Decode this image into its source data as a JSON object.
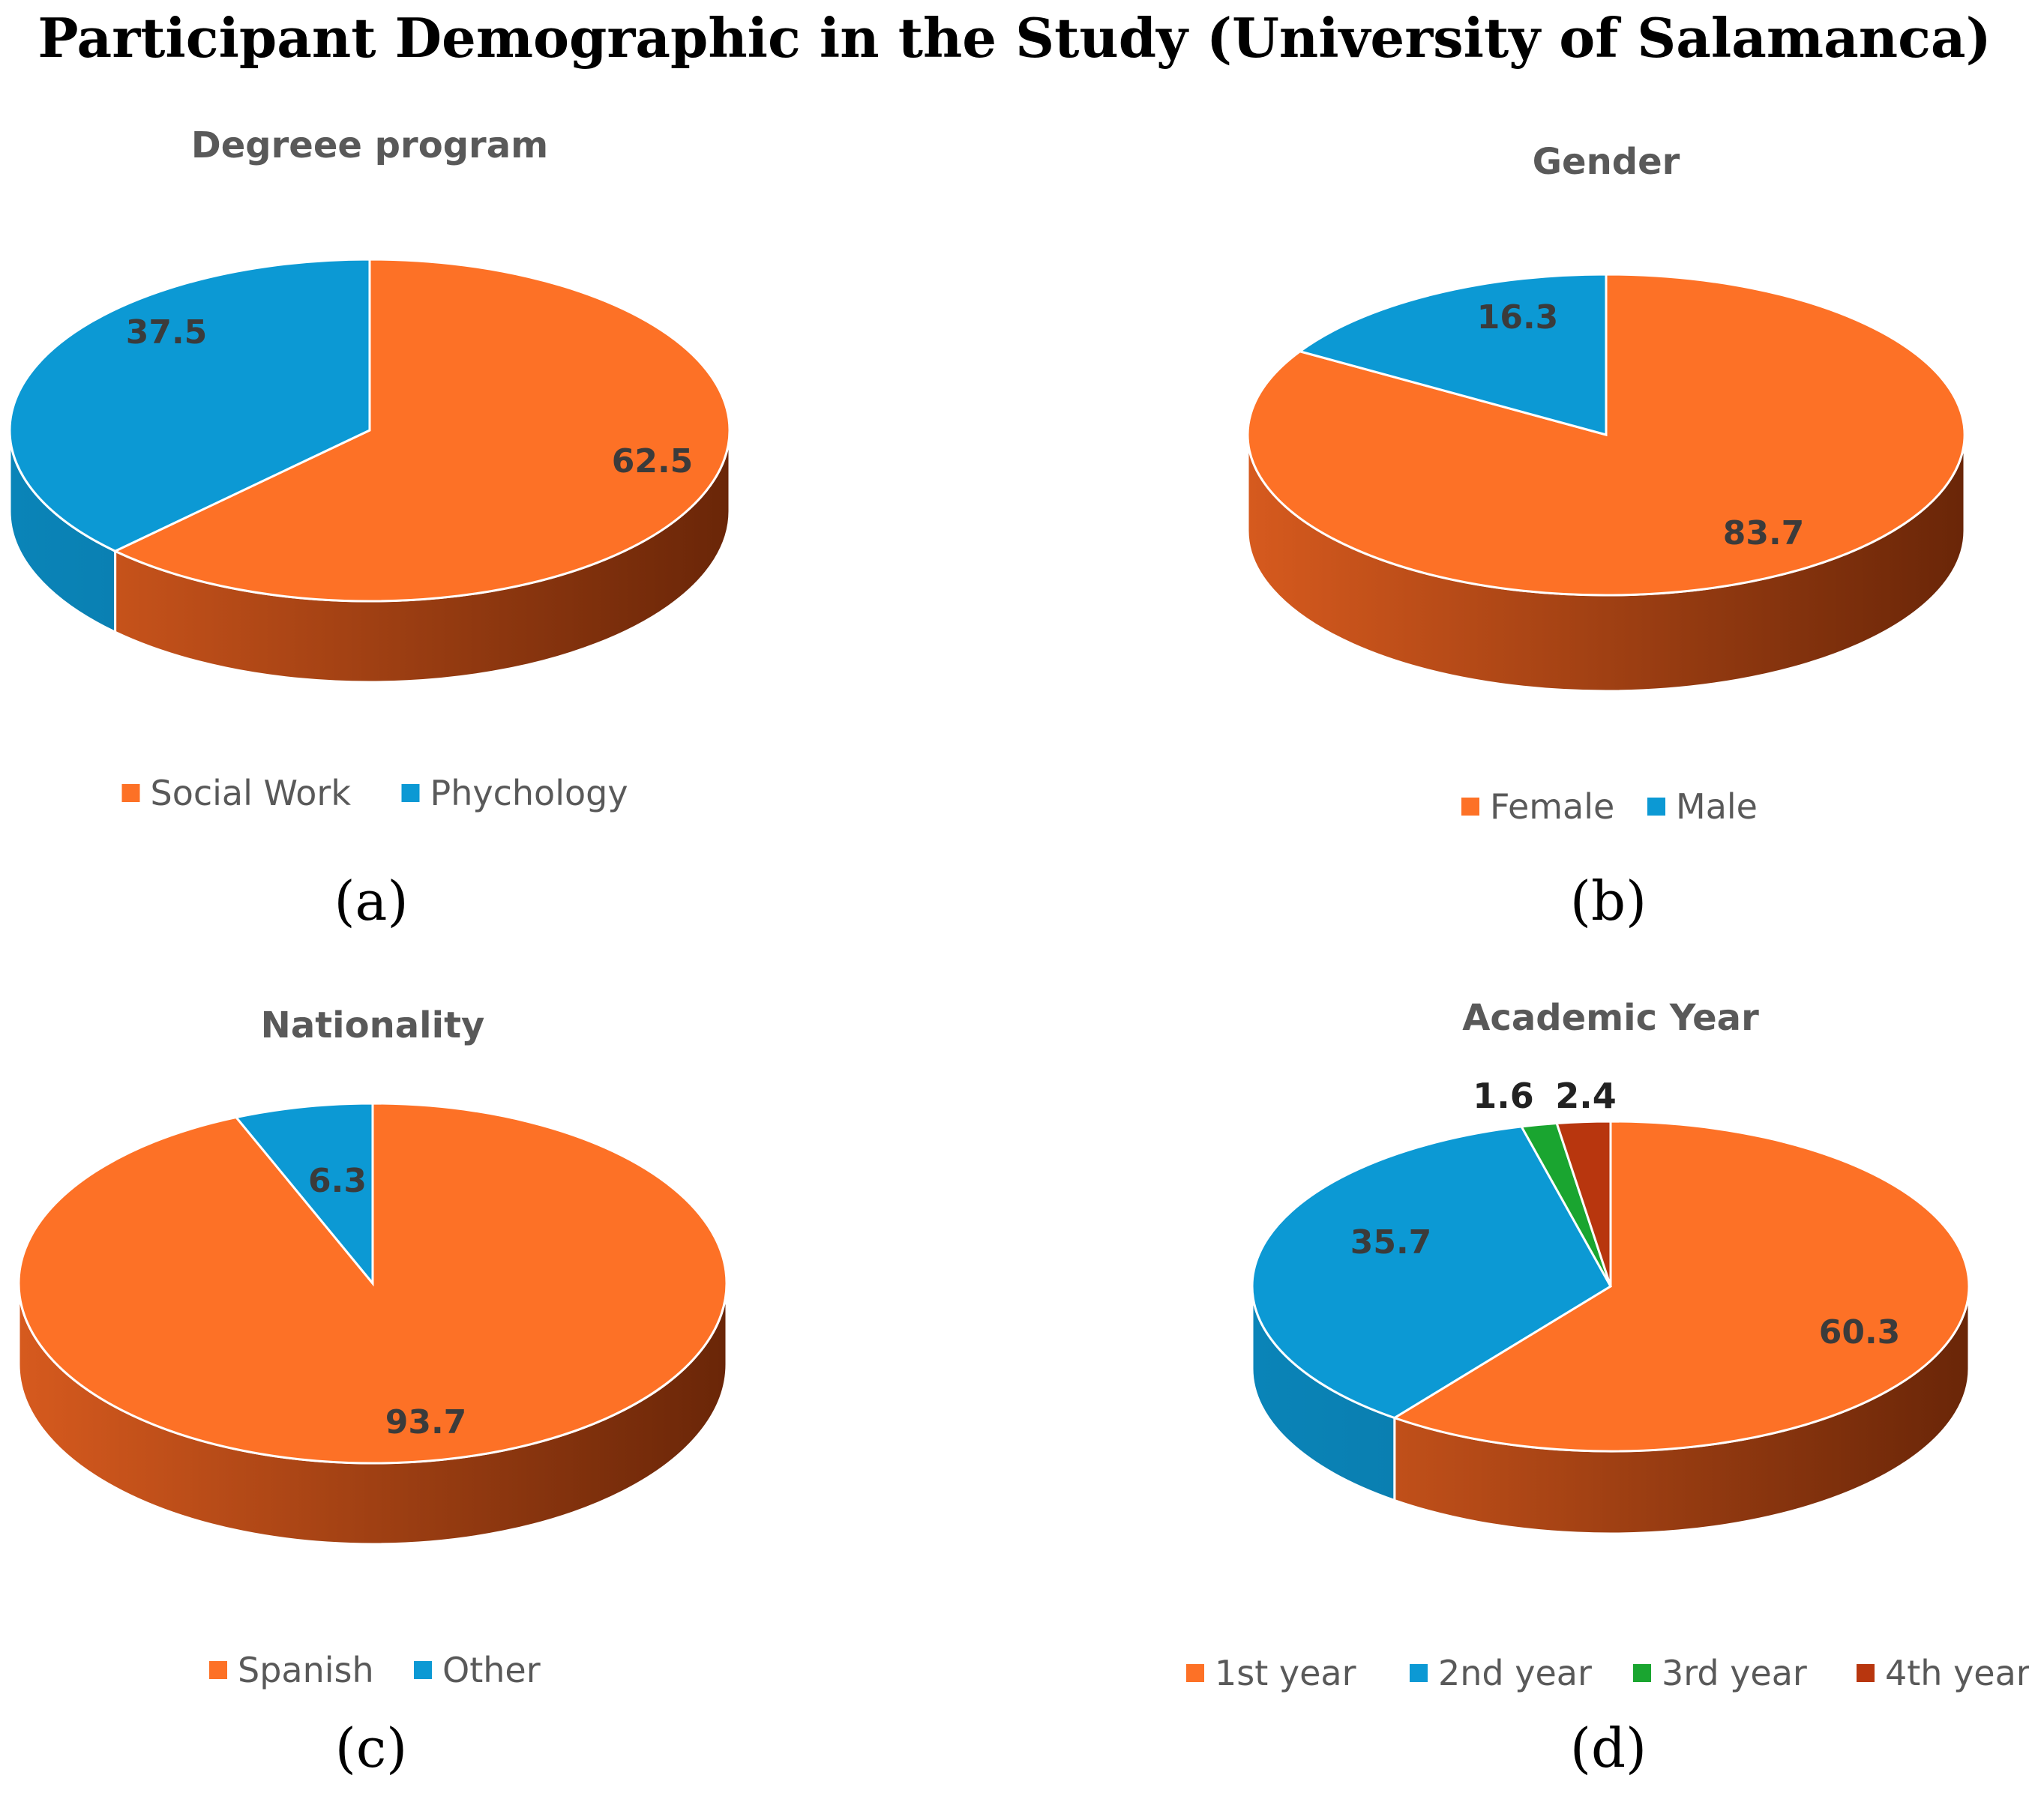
{
  "title": "Participant Demographic in the Study (University of Salamanca)",
  "colors": {
    "orange": "#fd7126",
    "orange_side_light": "#d65a1e",
    "orange_side_dark": "#6a2608",
    "blue": "#0c99d4",
    "blue_side": "#0a77a6",
    "green": "#1aa530",
    "green_side": "#117520",
    "darkred": "#b8360e",
    "darkred_side": "#7a220a"
  },
  "chart_data": [
    {
      "id": "a",
      "type": "pie",
      "title": "Degreee program",
      "panel_label": "(a)",
      "legend_position": "bottom",
      "slices": [
        {
          "label": "Social Work",
          "value": 62.5,
          "value_label": "62.5",
          "color": "#fd7126"
        },
        {
          "label": "Phychology",
          "value": 37.5,
          "value_label": "37.5",
          "color": "#0c99d4"
        }
      ]
    },
    {
      "id": "b",
      "type": "pie",
      "title": "Gender",
      "panel_label": "(b)",
      "legend_position": "bottom",
      "slices": [
        {
          "label": "Female",
          "value": 83.7,
          "value_label": "83.7",
          "color": "#fd7126"
        },
        {
          "label": "Male",
          "value": 16.3,
          "value_label": "16.3",
          "color": "#0c99d4"
        }
      ]
    },
    {
      "id": "c",
      "type": "pie",
      "title": "Nationality",
      "panel_label": "(c)",
      "legend_position": "bottom",
      "slices": [
        {
          "label": "Spanish",
          "value": 93.7,
          "value_label": "93.7",
          "color": "#fd7126"
        },
        {
          "label": "Other",
          "value": 6.3,
          "value_label": "6.3",
          "color": "#0c99d4"
        }
      ]
    },
    {
      "id": "d",
      "type": "pie",
      "title": "Academic Year",
      "panel_label": "(d)",
      "legend_position": "bottom",
      "slices": [
        {
          "label": "1st year",
          "value": 60.3,
          "value_label": "60.3",
          "color": "#fd7126"
        },
        {
          "label": "2nd year",
          "value": 35.7,
          "value_label": "35.7",
          "color": "#0c99d4"
        },
        {
          "label": "3rd year",
          "value": 1.6,
          "value_label": "1.6",
          "color": "#1aa530"
        },
        {
          "label": "4th year",
          "value": 2.4,
          "value_label": "2.4",
          "color": "#b8360e"
        }
      ]
    }
  ]
}
